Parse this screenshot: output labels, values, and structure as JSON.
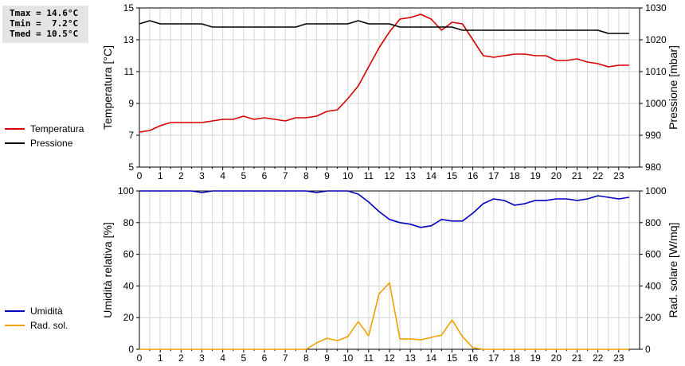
{
  "stats": {
    "tmax": "Tmax = 14.6°C",
    "tmin": "Tmin =  7.2°C",
    "tmed": "Tmed = 10.5°C"
  },
  "legend": {
    "temperature": "Temperatura",
    "pressure": "Pressione",
    "humidity": "Umidità",
    "solar": "Rad. sol."
  },
  "colors": {
    "temperature": "#d80000",
    "pressure": "#000000",
    "humidity": "#0000c0",
    "solar": "#f0a000",
    "grid": "#d6d6d6"
  },
  "chart_data": [
    {
      "type": "line",
      "ylabel_left": "Temperatura [°C]",
      "ylabel_right": "Pressione [mbar]",
      "xlim": [
        0,
        24
      ],
      "x_ticks": [
        "0",
        "1",
        "2",
        "3",
        "4",
        "5",
        "6",
        "7",
        "8",
        "9",
        "10",
        "11",
        "12",
        "13",
        "14",
        "15",
        "16",
        "17",
        "18",
        "19",
        "20",
        "21",
        "22",
        "23"
      ],
      "ylim_left": [
        5,
        15
      ],
      "y_ticks_left": [
        "5",
        "7",
        "9",
        "11",
        "13",
        "15"
      ],
      "ylim_right": [
        980,
        1030
      ],
      "y_ticks_right": [
        "980",
        "990",
        "1000",
        "1010",
        "1020",
        "1030"
      ],
      "grid": true,
      "series": [
        {
          "name": "Temperatura",
          "axis": "left",
          "x": [
            0,
            0.5,
            1,
            1.5,
            2,
            2.5,
            3,
            3.5,
            4,
            4.5,
            5,
            5.5,
            6,
            6.5,
            7,
            7.5,
            8,
            8.5,
            9,
            9.5,
            10,
            10.5,
            11,
            11.5,
            12,
            12.5,
            13,
            13.5,
            14,
            14.5,
            15,
            15.5,
            16,
            16.5,
            17,
            17.5,
            18,
            18.5,
            19,
            19.5,
            20,
            20.5,
            21,
            21.5,
            22,
            22.5,
            23,
            23.5
          ],
          "y": [
            7.2,
            7.3,
            7.6,
            7.8,
            7.8,
            7.8,
            7.8,
            7.9,
            8.0,
            8.0,
            8.2,
            8.0,
            8.1,
            8.0,
            7.9,
            8.1,
            8.1,
            8.2,
            8.5,
            8.6,
            9.3,
            10.1,
            11.3,
            12.5,
            13.5,
            14.3,
            14.4,
            14.6,
            14.3,
            13.6,
            14.1,
            14.0,
            13.0,
            12.0,
            11.9,
            12.0,
            12.1,
            12.1,
            12.0,
            12.0,
            11.7,
            11.7,
            11.8,
            11.6,
            11.5,
            11.3,
            11.4,
            11.4
          ]
        },
        {
          "name": "Pressione",
          "axis": "right",
          "x": [
            0,
            0.5,
            1,
            1.5,
            2,
            2.5,
            3,
            3.5,
            4,
            4.5,
            5,
            5.5,
            6,
            6.5,
            7,
            7.5,
            8,
            8.5,
            9,
            9.5,
            10,
            10.5,
            11,
            11.5,
            12,
            12.5,
            13,
            13.5,
            14,
            14.5,
            15,
            15.5,
            16,
            16.5,
            17,
            17.5,
            18,
            18.5,
            19,
            19.5,
            20,
            20.5,
            21,
            21.5,
            22,
            22.5,
            23,
            23.5
          ],
          "y": [
            1025,
            1026,
            1025,
            1025,
            1025,
            1025,
            1025,
            1024,
            1024,
            1024,
            1024,
            1024,
            1024,
            1024,
            1024,
            1024,
            1025,
            1025,
            1025,
            1025,
            1025,
            1026,
            1025,
            1025,
            1025,
            1024,
            1024,
            1024,
            1024,
            1024,
            1024,
            1023,
            1023,
            1023,
            1023,
            1023,
            1023,
            1023,
            1023,
            1023,
            1023,
            1023,
            1023,
            1023,
            1023,
            1022,
            1022,
            1022
          ]
        }
      ]
    },
    {
      "type": "line",
      "ylabel_left": "Umidità relativa [%]",
      "ylabel_right": "Rad. solare [W/mq]",
      "xlim": [
        0,
        24
      ],
      "x_ticks": [
        "0",
        "1",
        "2",
        "3",
        "4",
        "5",
        "6",
        "7",
        "8",
        "9",
        "10",
        "11",
        "12",
        "13",
        "14",
        "15",
        "16",
        "17",
        "18",
        "19",
        "20",
        "21",
        "22",
        "23"
      ],
      "ylim_left": [
        0,
        100
      ],
      "y_ticks_left": [
        "0",
        "20",
        "40",
        "60",
        "80",
        "100"
      ],
      "ylim_right": [
        0,
        1000
      ],
      "y_ticks_right": [
        "0",
        "200",
        "400",
        "600",
        "800",
        "1000"
      ],
      "grid": true,
      "series": [
        {
          "name": "Umidità",
          "axis": "left",
          "x": [
            0,
            0.5,
            1,
            1.5,
            2,
            2.5,
            3,
            3.5,
            4,
            4.5,
            5,
            5.5,
            6,
            6.5,
            7,
            7.5,
            8,
            8.5,
            9,
            9.5,
            10,
            10.5,
            11,
            11.5,
            12,
            12.5,
            13,
            13.5,
            14,
            14.5,
            15,
            15.5,
            16,
            16.5,
            17,
            17.5,
            18,
            18.5,
            19,
            19.5,
            20,
            20.5,
            21,
            21.5,
            22,
            22.5,
            23,
            23.5
          ],
          "y": [
            100,
            100,
            100,
            100,
            100,
            100,
            99,
            100,
            100,
            100,
            100,
            100,
            100,
            100,
            100,
            100,
            100,
            99,
            100,
            100,
            100,
            98,
            93,
            87,
            82,
            80,
            79,
            77,
            78,
            82,
            81,
            81,
            86,
            92,
            95,
            94,
            91,
            92,
            94,
            94,
            95,
            95,
            94,
            95,
            97,
            96,
            95,
            96
          ]
        },
        {
          "name": "Rad. sol.",
          "axis": "right",
          "x": [
            0,
            0.5,
            1,
            1.5,
            2,
            2.5,
            3,
            3.5,
            4,
            4.5,
            5,
            5.5,
            6,
            6.5,
            7,
            7.5,
            8,
            8.5,
            9,
            9.5,
            10,
            10.5,
            11,
            11.5,
            12,
            12.5,
            13,
            13.5,
            14,
            14.5,
            15,
            15.5,
            16,
            16.5,
            17,
            17.5,
            18,
            18.5,
            19,
            19.5,
            20,
            20.5,
            21,
            21.5,
            22,
            22.5,
            23,
            23.5
          ],
          "y": [
            0,
            0,
            0,
            0,
            0,
            0,
            0,
            0,
            0,
            0,
            0,
            0,
            0,
            0,
            0,
            0,
            0,
            40,
            70,
            55,
            80,
            175,
            85,
            350,
            420,
            65,
            65,
            60,
            75,
            90,
            185,
            80,
            10,
            0,
            0,
            0,
            0,
            0,
            0,
            0,
            0,
            0,
            0,
            0,
            0,
            0,
            0,
            0
          ]
        }
      ]
    }
  ]
}
